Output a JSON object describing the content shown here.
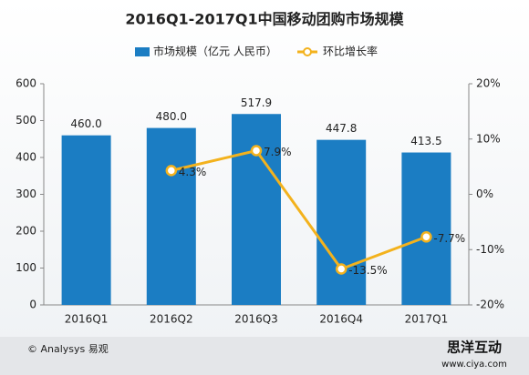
{
  "chart_data": {
    "type": "bar_line",
    "title": "2016Q1-2017Q1中国移动团购市场规模",
    "categories": [
      "2016Q1",
      "2016Q2",
      "2016Q3",
      "2016Q4",
      "2017Q1"
    ],
    "series": [
      {
        "name": "市场规模（亿元 人民币）",
        "type": "bar",
        "color": "#1b7dc3",
        "values": [
          460.0,
          480.0,
          517.9,
          447.8,
          413.5
        ],
        "value_labels": [
          "460.0",
          "480.0",
          "517.9",
          "447.8",
          "413.5"
        ]
      },
      {
        "name": "环比增长率",
        "type": "line",
        "axis": "y2",
        "color": "#f3b21d",
        "values": [
          null,
          4.3,
          7.9,
          -13.5,
          -7.7
        ],
        "value_labels": [
          null,
          "4.3%",
          "7.9%",
          "-13.5%",
          "-7.7%"
        ]
      }
    ],
    "ylim": [
      0,
      600
    ],
    "yticks": [
      0,
      100,
      200,
      300,
      400,
      500,
      600
    ],
    "y2lim": [
      -20,
      20
    ],
    "y2ticks": [
      {
        "value": -20,
        "label": "-20%"
      },
      {
        "value": -10,
        "label": "-10%"
      },
      {
        "value": 0,
        "label": "0%"
      },
      {
        "value": 10,
        "label": "10%"
      },
      {
        "value": 20,
        "label": "20%"
      }
    ],
    "source": "© Analysys 易观",
    "watermark": "思洋互动",
    "watermark_url": "www.ciya.com"
  }
}
